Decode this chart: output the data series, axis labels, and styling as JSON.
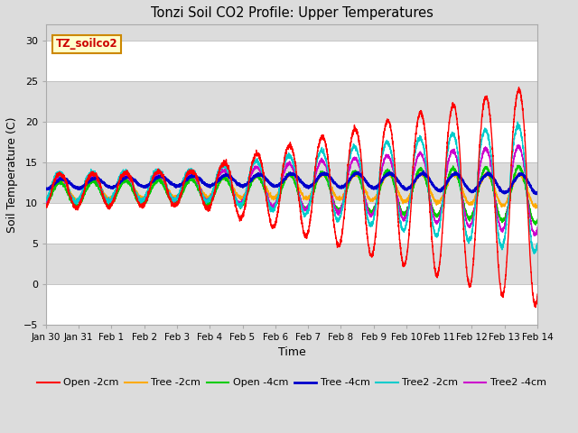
{
  "title": "Tonzi Soil CO2 Profile: Upper Temperatures",
  "xlabel": "Time",
  "ylabel": "Soil Temperature (C)",
  "ylim": [
    -5,
    32
  ],
  "yticks": [
    -5,
    0,
    5,
    10,
    15,
    20,
    25,
    30
  ],
  "background_color": "#dcdcdc",
  "plot_bg_color": "#dcdcdc",
  "watermark_text": "TZ_soilco2",
  "legend_labels": [
    "Open -2cm",
    "Tree -2cm",
    "Open -4cm",
    "Tree -4cm",
    "Tree2 -2cm",
    "Tree2 -4cm"
  ],
  "legend_colors": [
    "#ff0000",
    "#ffaa00",
    "#00cc00",
    "#0000cc",
    "#00cccc",
    "#cc00cc"
  ],
  "xtick_labels": [
    "Jan 30",
    "Jan 31",
    "Feb 1",
    "Feb 2",
    "Feb 3",
    "Feb 4",
    "Feb 5",
    "Feb 6",
    "Feb 7",
    "Feb 8",
    "Feb 9",
    "Feb 10",
    "Feb 11",
    "Feb 12",
    "Feb 13",
    "Feb 14"
  ],
  "num_days": 15,
  "points_per_day": 288,
  "figsize": [
    6.4,
    4.8
  ],
  "dpi": 100
}
